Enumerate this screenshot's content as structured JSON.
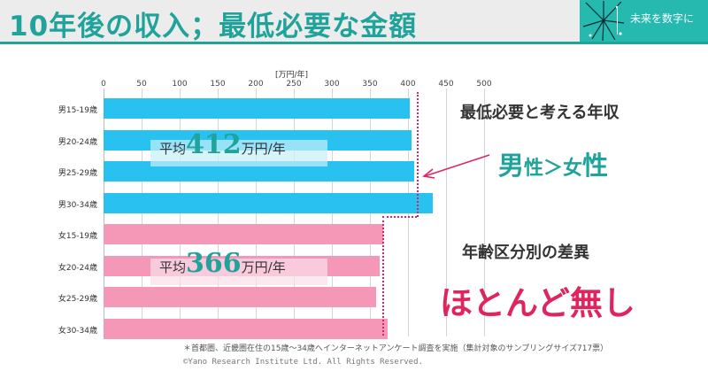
{
  "slide": {
    "title": "10年後の収入；最低必要な金額",
    "logo_text": "未来を数字に",
    "note": "＊首都圏、近畿圏在住の15歳～34歳へインターネットアンケート調査を実施（集計対象のサンプリングサイズ717票）",
    "copyright": "©Yano Research Institute Ltd. All Rights Reserved."
  },
  "chart_data": {
    "type": "bar",
    "orientation": "horizontal",
    "unit_label": "[万円/年]",
    "xlim": [
      0,
      500
    ],
    "ticks": [
      "0",
      "50",
      "100",
      "150",
      "200",
      "250",
      "300",
      "350",
      "400",
      "450",
      "500"
    ],
    "categories": [
      "男15-19歳",
      "男20-24歳",
      "男25-29歳",
      "男30-34歳",
      "女15-19歳",
      "女20-24歳",
      "女25-29歳",
      "女30-34歳"
    ],
    "values": [
      402,
      405,
      408,
      432,
      368,
      363,
      358,
      373
    ],
    "colors": {
      "male": "#29c1f0",
      "female": "#f598b8",
      "accent": "#1fa39a",
      "highlight": "#e0245e"
    },
    "averages": {
      "male": {
        "prefix": "平均",
        "value": "412",
        "suffix": "万円/年"
      },
      "female": {
        "prefix": "平均",
        "value": "366",
        "suffix": "万円/年"
      }
    },
    "annotations": {
      "min_required": "最低必要と考える年収",
      "gender_big1": "男",
      "gender_mid": "性＞女",
      "gender_big2": "性",
      "age_diff": "年齢区分別の差異",
      "conclusion": "ほとんど無し"
    }
  }
}
